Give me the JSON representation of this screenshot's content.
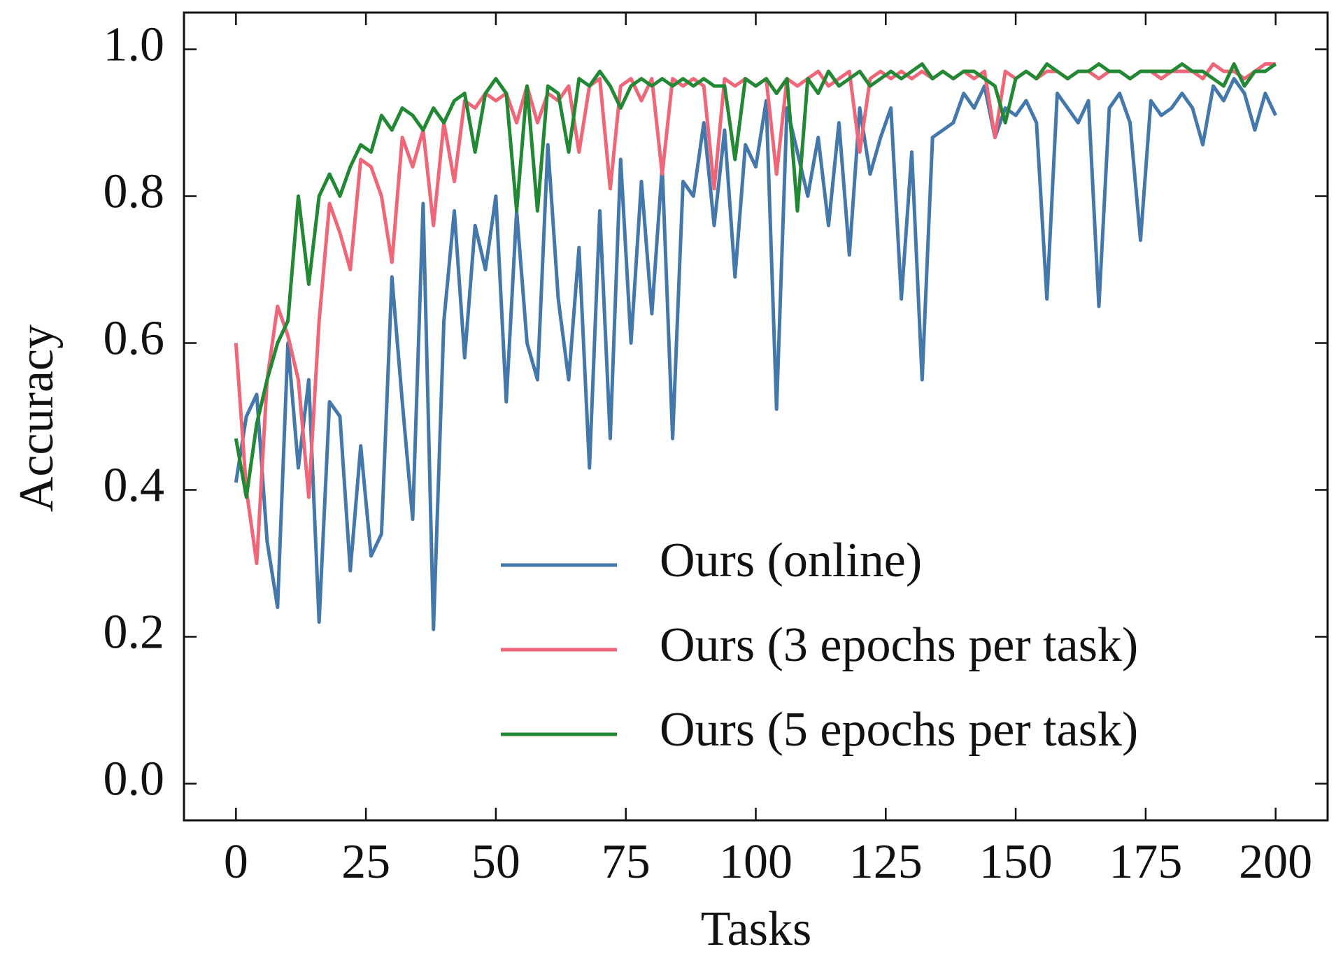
{
  "chart_data": {
    "type": "line",
    "xlabel": "Tasks",
    "ylabel": "Accuracy",
    "x": [
      0,
      2,
      4,
      6,
      8,
      10,
      12,
      14,
      16,
      18,
      20,
      22,
      24,
      26,
      28,
      30,
      32,
      34,
      36,
      38,
      40,
      42,
      44,
      46,
      48,
      50,
      52,
      54,
      56,
      58,
      60,
      62,
      64,
      66,
      68,
      70,
      72,
      74,
      76,
      78,
      80,
      82,
      84,
      86,
      88,
      90,
      92,
      94,
      96,
      98,
      100,
      102,
      104,
      106,
      108,
      110,
      112,
      114,
      116,
      118,
      120,
      122,
      124,
      126,
      128,
      130,
      132,
      134,
      136,
      138,
      140,
      142,
      144,
      146,
      148,
      150,
      152,
      154,
      156,
      158,
      160,
      162,
      164,
      166,
      168,
      170,
      172,
      174,
      176,
      178,
      180,
      182,
      184,
      186,
      188,
      190,
      192,
      194,
      196,
      198,
      200
    ],
    "series": [
      {
        "name": "Ours (online)",
        "color": "#4477aa",
        "values": [
          0.41,
          0.5,
          0.53,
          0.33,
          0.24,
          0.6,
          0.43,
          0.55,
          0.22,
          0.52,
          0.5,
          0.29,
          0.46,
          0.31,
          0.34,
          0.69,
          0.52,
          0.36,
          0.79,
          0.21,
          0.63,
          0.78,
          0.58,
          0.76,
          0.7,
          0.8,
          0.52,
          0.78,
          0.6,
          0.55,
          0.87,
          0.66,
          0.55,
          0.73,
          0.43,
          0.78,
          0.47,
          0.85,
          0.6,
          0.82,
          0.64,
          0.84,
          0.47,
          0.82,
          0.8,
          0.9,
          0.76,
          0.89,
          0.69,
          0.87,
          0.84,
          0.93,
          0.51,
          0.92,
          0.86,
          0.8,
          0.88,
          0.76,
          0.9,
          0.72,
          0.92,
          0.83,
          0.88,
          0.92,
          0.66,
          0.86,
          0.55,
          0.88,
          0.89,
          0.9,
          0.94,
          0.92,
          0.95,
          0.88,
          0.92,
          0.91,
          0.93,
          0.9,
          0.66,
          0.94,
          0.92,
          0.9,
          0.93,
          0.65,
          0.92,
          0.94,
          0.9,
          0.74,
          0.93,
          0.91,
          0.92,
          0.94,
          0.92,
          0.87,
          0.95,
          0.93,
          0.96,
          0.94,
          0.89,
          0.94,
          0.91
        ]
      },
      {
        "name": "Ours (3 epochs per task)",
        "color": "#ee6677",
        "values": [
          0.6,
          0.4,
          0.3,
          0.55,
          0.65,
          0.61,
          0.55,
          0.39,
          0.63,
          0.79,
          0.75,
          0.7,
          0.85,
          0.84,
          0.8,
          0.71,
          0.88,
          0.84,
          0.89,
          0.76,
          0.9,
          0.82,
          0.93,
          0.92,
          0.94,
          0.93,
          0.94,
          0.9,
          0.95,
          0.9,
          0.94,
          0.93,
          0.95,
          0.86,
          0.95,
          0.96,
          0.81,
          0.95,
          0.96,
          0.93,
          0.96,
          0.83,
          0.96,
          0.95,
          0.96,
          0.95,
          0.81,
          0.96,
          0.95,
          0.96,
          0.95,
          0.96,
          0.83,
          0.96,
          0.95,
          0.96,
          0.97,
          0.95,
          0.96,
          0.97,
          0.86,
          0.96,
          0.97,
          0.96,
          0.97,
          0.96,
          0.97,
          0.96,
          0.97,
          0.96,
          0.97,
          0.96,
          0.97,
          0.88,
          0.97,
          0.96,
          0.97,
          0.96,
          0.97,
          0.97,
          0.96,
          0.97,
          0.97,
          0.96,
          0.97,
          0.97,
          0.96,
          0.97,
          0.97,
          0.96,
          0.97,
          0.97,
          0.97,
          0.96,
          0.98,
          0.97,
          0.97,
          0.96,
          0.97,
          0.98,
          0.98
        ]
      },
      {
        "name": "Ours (5 epochs per task)",
        "color": "#228833",
        "values": [
          0.47,
          0.39,
          0.49,
          0.55,
          0.6,
          0.63,
          0.8,
          0.68,
          0.8,
          0.83,
          0.8,
          0.84,
          0.87,
          0.86,
          0.91,
          0.89,
          0.92,
          0.91,
          0.89,
          0.92,
          0.9,
          0.93,
          0.94,
          0.86,
          0.94,
          0.96,
          0.94,
          0.78,
          0.95,
          0.78,
          0.95,
          0.94,
          0.86,
          0.96,
          0.95,
          0.97,
          0.95,
          0.92,
          0.95,
          0.96,
          0.95,
          0.96,
          0.95,
          0.96,
          0.95,
          0.96,
          0.95,
          0.95,
          0.85,
          0.96,
          0.95,
          0.96,
          0.94,
          0.96,
          0.78,
          0.96,
          0.94,
          0.97,
          0.95,
          0.96,
          0.97,
          0.95,
          0.96,
          0.97,
          0.96,
          0.97,
          0.98,
          0.96,
          0.97,
          0.96,
          0.97,
          0.97,
          0.96,
          0.95,
          0.9,
          0.96,
          0.97,
          0.96,
          0.98,
          0.97,
          0.96,
          0.97,
          0.97,
          0.98,
          0.97,
          0.97,
          0.96,
          0.97,
          0.97,
          0.97,
          0.97,
          0.98,
          0.97,
          0.97,
          0.96,
          0.95,
          0.98,
          0.95,
          0.97,
          0.97,
          0.98
        ]
      }
    ],
    "xlim": [
      -10,
      210
    ],
    "ylim": [
      -0.05,
      1.05
    ],
    "xticks": [
      0,
      25,
      50,
      75,
      100,
      125,
      150,
      175,
      200
    ],
    "yticks": [
      {
        "value": 0,
        "label": "0.0"
      },
      0.2,
      0.4,
      0.6,
      0.8,
      {
        "value": 1,
        "label": "1.0"
      }
    ],
    "legend": "lower right"
  }
}
